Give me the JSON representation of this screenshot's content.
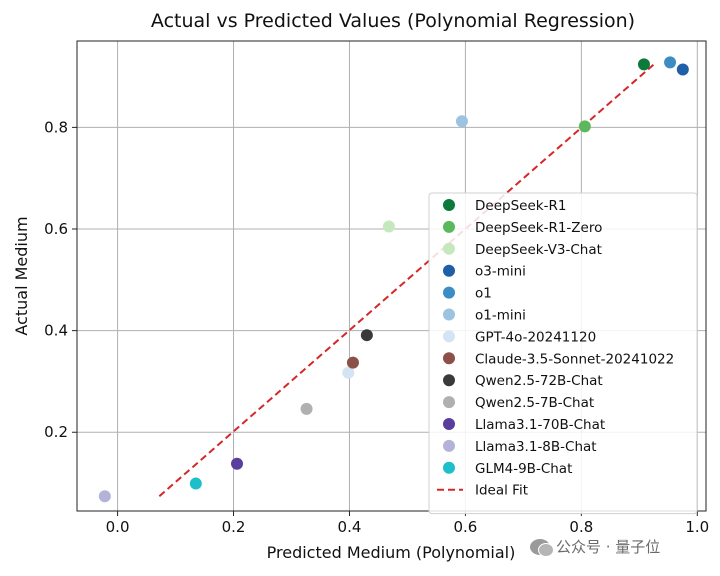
{
  "chart_data": {
    "type": "scatter",
    "title": "Actual vs Predicted Values (Polynomial Regression)",
    "xlabel": "Predicted Medium (Polynomial)",
    "ylabel": "Actual Medium",
    "xlim": [
      -0.07,
      1.015
    ],
    "ylim": [
      0.045,
      0.97
    ],
    "xticks": [
      0.0,
      0.2,
      0.4,
      0.6,
      0.8,
      1.0
    ],
    "xtick_labels": [
      "0.0",
      "0.2",
      "0.4",
      "0.6",
      "0.8",
      "1.0"
    ],
    "yticks": [
      0.2,
      0.4,
      0.6,
      0.8
    ],
    "ytick_labels": [
      "0.2",
      "0.4",
      "0.6",
      "0.8"
    ],
    "grid": true,
    "legend_position": "lower-right",
    "series": [
      {
        "name": "DeepSeek-R1",
        "color": "#0b7a3b",
        "x": 0.908,
        "y": 0.924
      },
      {
        "name": "DeepSeek-R1-Zero",
        "color": "#5cb85c",
        "x": 0.806,
        "y": 0.802
      },
      {
        "name": "DeepSeek-V3-Chat",
        "color": "#c6e8bf",
        "x": 0.468,
        "y": 0.605
      },
      {
        "name": "o3-mini",
        "color": "#1f5fa8",
        "x": 0.975,
        "y": 0.914
      },
      {
        "name": "o1",
        "color": "#3d8cc4",
        "x": 0.953,
        "y": 0.928
      },
      {
        "name": "o1-mini",
        "color": "#9cc3df",
        "x": 0.594,
        "y": 0.812
      },
      {
        "name": "GPT-4o-20241120",
        "color": "#d5e4f2",
        "x": 0.398,
        "y": 0.317
      },
      {
        "name": "Claude-3.5-Sonnet-20241022",
        "color": "#8b5048",
        "x": 0.406,
        "y": 0.337
      },
      {
        "name": "Qwen2.5-72B-Chat",
        "color": "#3a3a3a",
        "x": 0.43,
        "y": 0.391
      },
      {
        "name": "Qwen2.5-7B-Chat",
        "color": "#b0b0b0",
        "x": 0.326,
        "y": 0.246
      },
      {
        "name": "Llama3.1-70B-Chat",
        "color": "#5a3e9e",
        "x": 0.206,
        "y": 0.138
      },
      {
        "name": "Llama3.1-8B-Chat",
        "color": "#b4b2d8",
        "x": -0.022,
        "y": 0.074
      },
      {
        "name": "GLM4-9B-Chat",
        "color": "#1fbfc9",
        "x": 0.135,
        "y": 0.099
      }
    ],
    "ideal_fit": {
      "name": "Ideal Fit",
      "color": "#d62728",
      "style": "dashed",
      "x": [
        0.072,
        0.925
      ],
      "y": [
        0.074,
        0.924
      ]
    }
  },
  "watermark": {
    "text": "公众号 · 量子位",
    "icon": "wechat-icon"
  }
}
